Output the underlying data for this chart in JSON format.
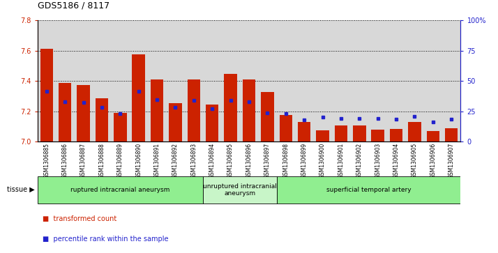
{
  "title": "GDS5186 / 8117",
  "samples": [
    "GSM1306885",
    "GSM1306886",
    "GSM1306887",
    "GSM1306888",
    "GSM1306889",
    "GSM1306890",
    "GSM1306891",
    "GSM1306892",
    "GSM1306893",
    "GSM1306894",
    "GSM1306895",
    "GSM1306896",
    "GSM1306897",
    "GSM1306898",
    "GSM1306899",
    "GSM1306900",
    "GSM1306901",
    "GSM1306902",
    "GSM1306903",
    "GSM1306904",
    "GSM1306905",
    "GSM1306906",
    "GSM1306907"
  ],
  "red_values": [
    7.61,
    7.385,
    7.375,
    7.285,
    7.19,
    7.575,
    7.41,
    7.255,
    7.41,
    7.245,
    7.445,
    7.41,
    7.325,
    7.175,
    7.13,
    7.075,
    7.105,
    7.105,
    7.08,
    7.085,
    7.13,
    7.07,
    7.09
  ],
  "blue_values": [
    7.33,
    7.265,
    7.26,
    7.225,
    7.185,
    7.33,
    7.275,
    7.225,
    7.27,
    7.215,
    7.27,
    7.265,
    7.19,
    7.185,
    7.145,
    7.16,
    7.155,
    7.155,
    7.155,
    7.15,
    7.165,
    7.13,
    7.15
  ],
  "groups": [
    {
      "label": "ruptured intracranial aneurysm",
      "start": 0,
      "end": 9,
      "color": "#90ee90"
    },
    {
      "label": "unruptured intracranial\naneurysm",
      "start": 9,
      "end": 13,
      "color": "#c8f5c8"
    },
    {
      "label": "superficial temporal artery",
      "start": 13,
      "end": 23,
      "color": "#90ee90"
    }
  ],
  "ylim_left": [
    7.0,
    7.8
  ],
  "ylim_right": [
    0,
    100
  ],
  "yticks_left": [
    7.0,
    7.2,
    7.4,
    7.6,
    7.8
  ],
  "yticks_right": [
    0,
    25,
    50,
    75,
    100
  ],
  "bar_color": "#cc2200",
  "blue_color": "#2222cc",
  "col_bg_color": "#d8d8d8",
  "plot_bg": "#ffffff"
}
